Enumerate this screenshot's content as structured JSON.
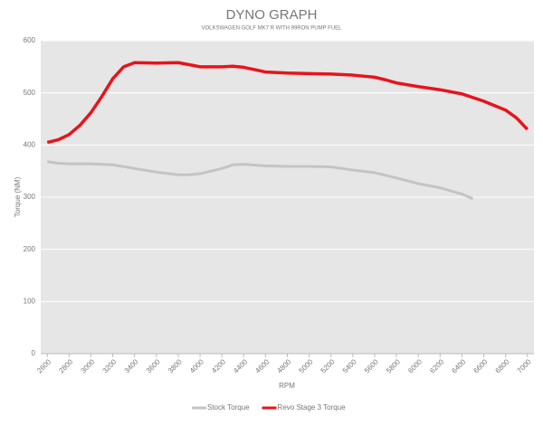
{
  "chart_data": {
    "type": "line",
    "title": "DYNO GRAPH",
    "subtitle": "VOLKSWAGEN GOLF MK7 R WITH 99RON PUMP FUEL",
    "x_label": "RPM",
    "y_label": "Torque (NM)",
    "xlim": [
      2540,
      7060
    ],
    "xticks": [
      2600,
      2800,
      3000,
      3200,
      3400,
      3600,
      3800,
      4000,
      4200,
      4400,
      4600,
      4800,
      5000,
      5200,
      5400,
      5600,
      5800,
      6000,
      6200,
      6400,
      6600,
      6800,
      7000
    ],
    "ylim": [
      0,
      600
    ],
    "yticks": [
      0,
      100,
      200,
      300,
      400,
      500,
      600
    ],
    "grid": true,
    "legend": "bottom",
    "series": [
      {
        "name": "Stock Torque",
        "color": "#c4c4c4",
        "x": [
          2600,
          2700,
          2800,
          3000,
          3200,
          3400,
          3600,
          3800,
          3900,
          4000,
          4200,
          4300,
          4400,
          4600,
          4800,
          5000,
          5200,
          5400,
          5600,
          5800,
          6000,
          6200,
          6400,
          6500
        ],
        "values": [
          368,
          365,
          364,
          364,
          362,
          355,
          348,
          343,
          343,
          345,
          355,
          362,
          363,
          360,
          359,
          359,
          358,
          352,
          347,
          337,
          326,
          318,
          306,
          297
        ]
      },
      {
        "name": "Revo Stage 3 Torque",
        "color": "#e8131b",
        "x": [
          2600,
          2700,
          2800,
          2900,
          3000,
          3100,
          3200,
          3300,
          3400,
          3600,
          3800,
          3900,
          4000,
          4200,
          4300,
          4400,
          4600,
          4800,
          5000,
          5200,
          5400,
          5600,
          5700,
          5800,
          6000,
          6200,
          6400,
          6600,
          6800,
          6900,
          7000
        ],
        "values": [
          405,
          410,
          420,
          438,
          462,
          493,
          527,
          550,
          558,
          557,
          558,
          554,
          550,
          550,
          551,
          549,
          540,
          538,
          537,
          536,
          534,
          530,
          525,
          519,
          512,
          506,
          498,
          484,
          467,
          452,
          430
        ]
      }
    ]
  }
}
